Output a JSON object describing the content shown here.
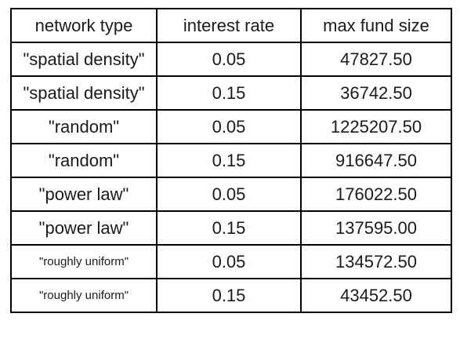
{
  "table": {
    "headers": [
      "network type",
      "interest rate",
      "max fund size"
    ],
    "rows": [
      {
        "network_type": "\"spatial density\"",
        "interest_rate": "0.05",
        "max_fund_size": "47827.50",
        "small": false
      },
      {
        "network_type": "\"spatial density\"",
        "interest_rate": "0.15",
        "max_fund_size": "36742.50",
        "small": false
      },
      {
        "network_type": "\"random\"",
        "interest_rate": "0.05",
        "max_fund_size": "1225207.50",
        "small": false
      },
      {
        "network_type": "\"random\"",
        "interest_rate": "0.15",
        "max_fund_size": "916647.50",
        "small": false
      },
      {
        "network_type": "\"power law\"",
        "interest_rate": "0.05",
        "max_fund_size": "176022.50",
        "small": false
      },
      {
        "network_type": "\"power law\"",
        "interest_rate": "0.15",
        "max_fund_size": "137595.00",
        "small": false
      },
      {
        "network_type": "\"roughly uniform\"",
        "interest_rate": "0.05",
        "max_fund_size": "134572.50",
        "small": true
      },
      {
        "network_type": "\"roughly uniform\"",
        "interest_rate": "0.15",
        "max_fund_size": "43452.50",
        "small": true
      }
    ]
  }
}
